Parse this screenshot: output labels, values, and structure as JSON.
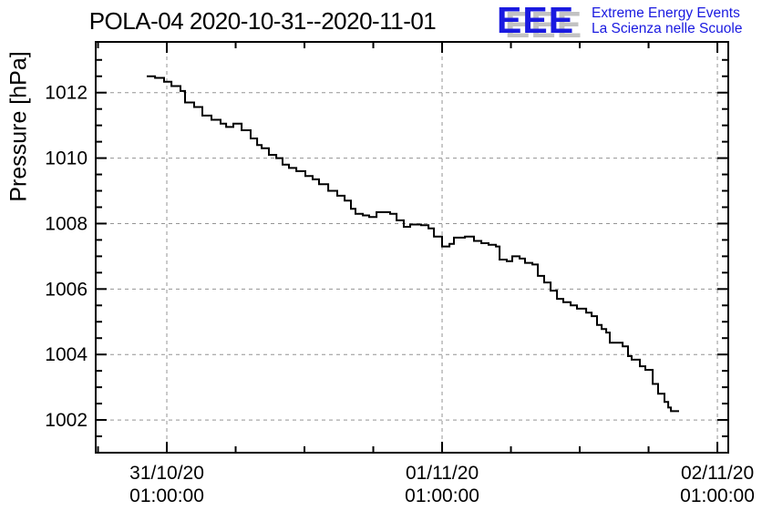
{
  "logo": {
    "acronym": "EEE",
    "tagline_line1": "Extreme Energy Events",
    "tagline_line2": "La Scienza nelle Scuole",
    "color_blue": "#1a1ae0",
    "color_shadow": "#c2c2c2"
  },
  "chart_data": {
    "type": "line",
    "style": "step-post",
    "title": "POLA-04 2020-10-31--2020-11-01",
    "xlabel": "",
    "ylabel": "Pressure [hPa]",
    "x_unit": "hours since 2020-10-31 00:00:00",
    "xlim": [
      -5.2,
      49.95
    ],
    "ylim": [
      1001.0,
      1013.55
    ],
    "grid": true,
    "grid_color": "#949494",
    "line_color": "#000000",
    "frame_color": "#000000",
    "x_major_ticks": [
      {
        "hours": 1,
        "date": "31/10/20",
        "time": "01:00:00"
      },
      {
        "hours": 25,
        "date": "01/11/20",
        "time": "01:00:00"
      },
      {
        "hours": 49,
        "date": "02/11/20",
        "time": "01:00:00"
      }
    ],
    "x_minor_ticks_hours": [
      -5,
      7,
      13,
      19,
      31,
      37,
      43
    ],
    "y_major_ticks": [
      1002,
      1004,
      1006,
      1008,
      1010,
      1012
    ],
    "y_minor_tick_step": 0.5,
    "series": [
      {
        "name": "pressure",
        "points": [
          [
            -0.75,
            1012.5
          ],
          [
            -0.03,
            1012.45
          ],
          [
            0.76,
            1012.33
          ],
          [
            1.4,
            1012.2
          ],
          [
            2.19,
            1012.05
          ],
          [
            2.59,
            1011.7
          ],
          [
            3.38,
            1011.56
          ],
          [
            4.1,
            1011.3
          ],
          [
            4.89,
            1011.17
          ],
          [
            5.69,
            1011.05
          ],
          [
            6.17,
            1010.95
          ],
          [
            6.8,
            1011.05
          ],
          [
            7.52,
            1010.85
          ],
          [
            8.31,
            1010.6
          ],
          [
            8.87,
            1010.4
          ],
          [
            9.27,
            1010.3
          ],
          [
            9.9,
            1010.1
          ],
          [
            10.54,
            1010.0
          ],
          [
            11.09,
            1009.8
          ],
          [
            11.65,
            1009.7
          ],
          [
            12.29,
            1009.6
          ],
          [
            13.08,
            1009.45
          ],
          [
            13.71,
            1009.35
          ],
          [
            14.27,
            1009.2
          ],
          [
            15.07,
            1009.0
          ],
          [
            15.86,
            1008.85
          ],
          [
            16.5,
            1008.7
          ],
          [
            17.05,
            1008.45
          ],
          [
            17.45,
            1008.3
          ],
          [
            18.09,
            1008.25
          ],
          [
            18.64,
            1008.2
          ],
          [
            19.28,
            1008.35
          ],
          [
            20.47,
            1008.3
          ],
          [
            21.03,
            1008.1
          ],
          [
            21.66,
            1007.9
          ],
          [
            22.22,
            1007.97
          ],
          [
            23.17,
            1007.95
          ],
          [
            23.81,
            1007.85
          ],
          [
            24.29,
            1007.6
          ],
          [
            25.0,
            1007.3
          ],
          [
            25.64,
            1007.38
          ],
          [
            26.03,
            1007.57
          ],
          [
            26.99,
            1007.6
          ],
          [
            27.78,
            1007.47
          ],
          [
            28.42,
            1007.4
          ],
          [
            29.05,
            1007.35
          ],
          [
            29.69,
            1007.3
          ],
          [
            30.01,
            1006.9
          ],
          [
            30.64,
            1006.85
          ],
          [
            31.12,
            1007.0
          ],
          [
            31.76,
            1006.93
          ],
          [
            32.23,
            1006.8
          ],
          [
            32.87,
            1006.75
          ],
          [
            33.35,
            1006.4
          ],
          [
            33.9,
            1006.2
          ],
          [
            34.46,
            1005.95
          ],
          [
            35.02,
            1005.7
          ],
          [
            35.57,
            1005.6
          ],
          [
            36.21,
            1005.5
          ],
          [
            36.76,
            1005.4
          ],
          [
            37.56,
            1005.28
          ],
          [
            38.04,
            1005.17
          ],
          [
            38.51,
            1004.9
          ],
          [
            38.91,
            1004.78
          ],
          [
            39.31,
            1004.67
          ],
          [
            39.62,
            1004.36
          ],
          [
            40.74,
            1004.25
          ],
          [
            41.21,
            1003.95
          ],
          [
            41.53,
            1003.84
          ],
          [
            42.24,
            1003.64
          ],
          [
            42.72,
            1003.53
          ],
          [
            43.36,
            1003.1
          ],
          [
            43.83,
            1002.8
          ],
          [
            44.39,
            1002.55
          ],
          [
            44.71,
            1002.38
          ],
          [
            44.95,
            1002.27
          ],
          [
            45.66,
            1002.27
          ]
        ]
      }
    ]
  }
}
